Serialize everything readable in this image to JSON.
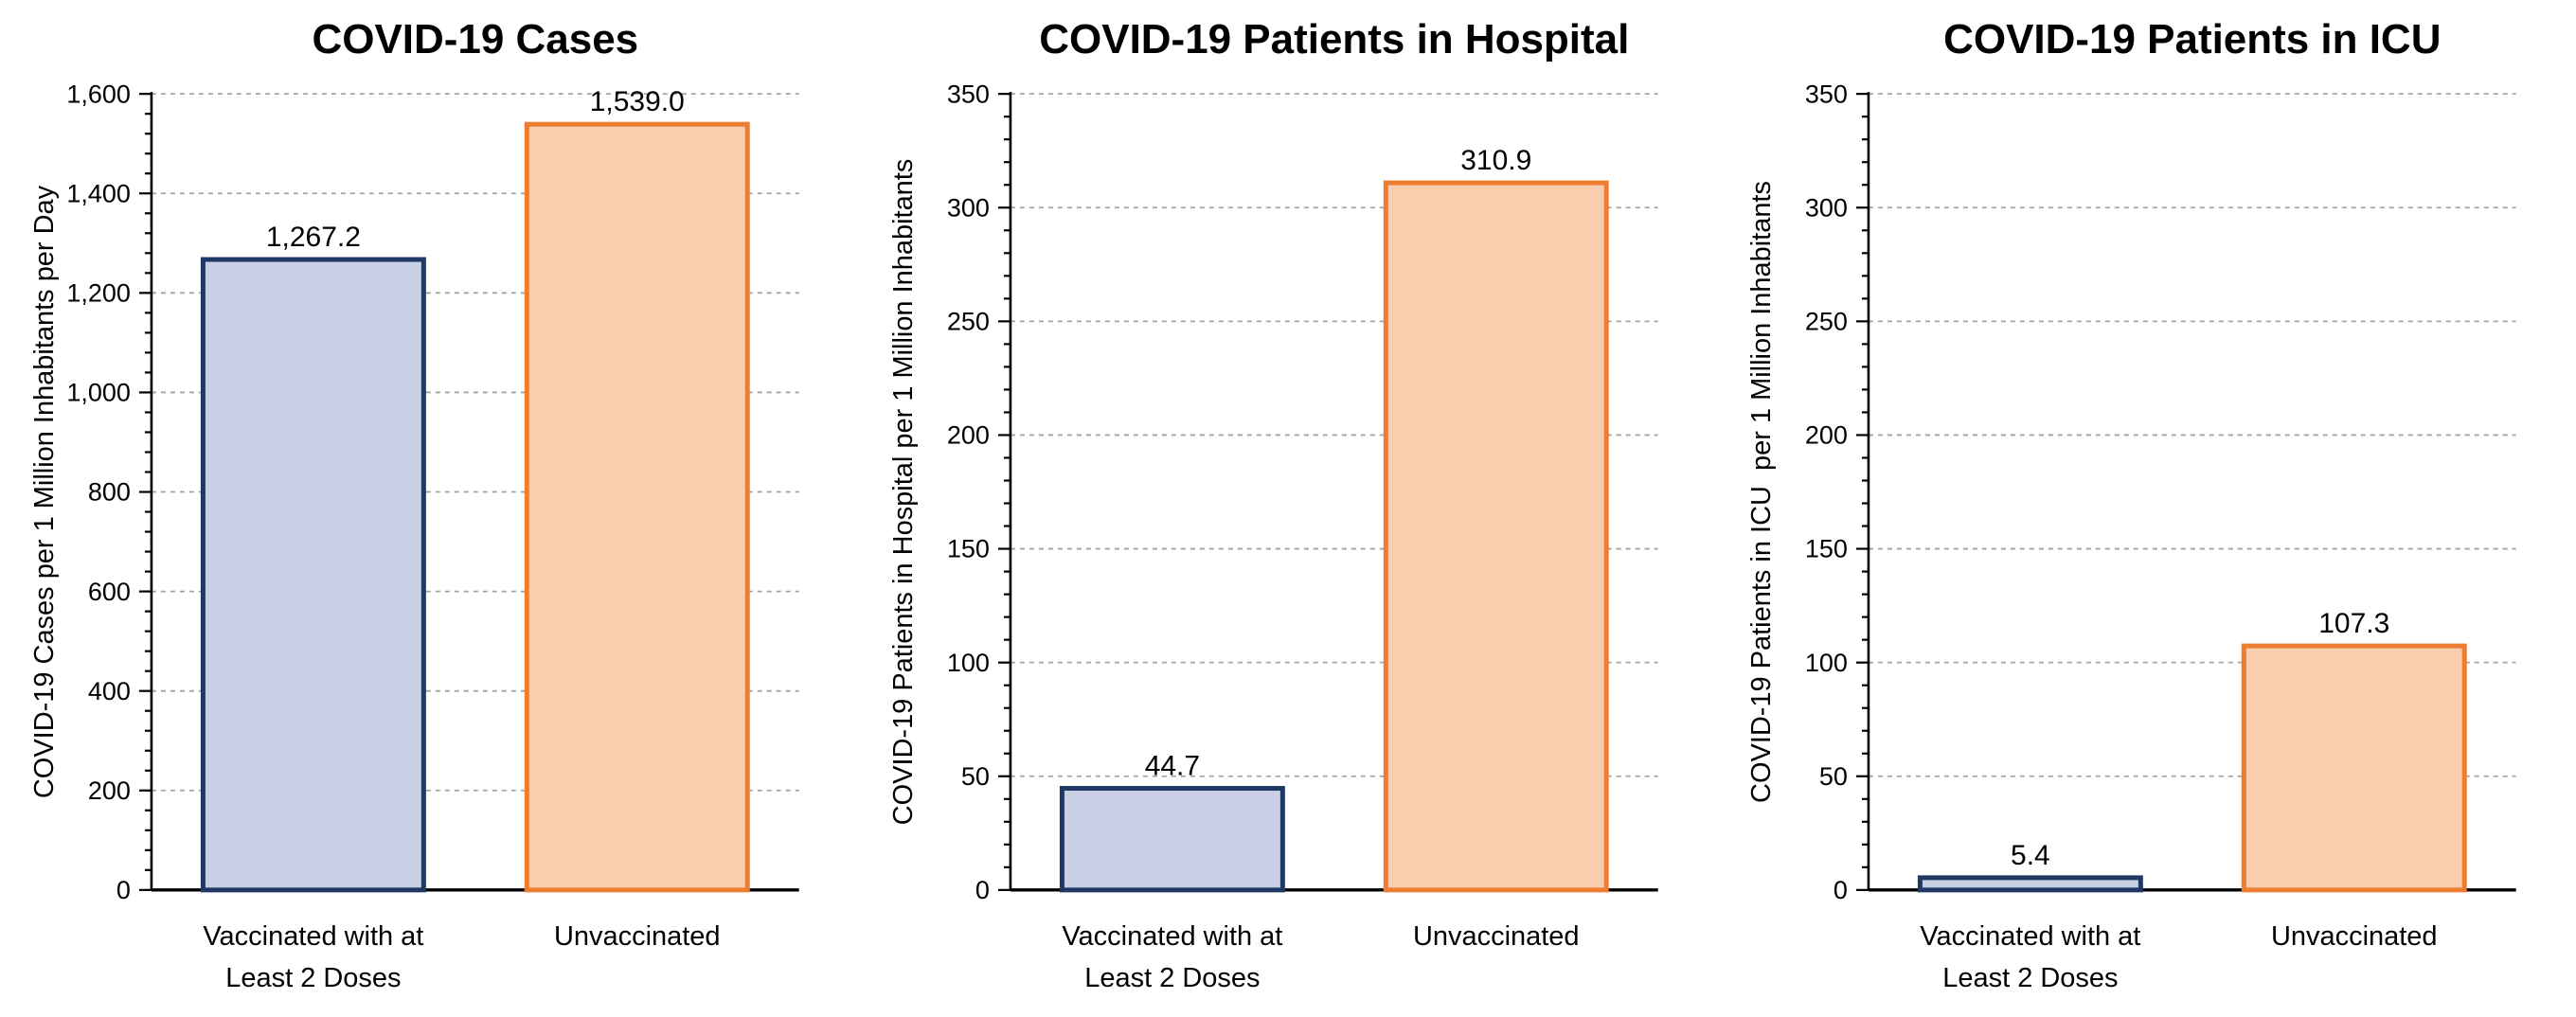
{
  "styles": {
    "background": "#FFFFFF",
    "grid_color": "#A3A3A3",
    "axis_color": "#000000",
    "text_color": "#000000",
    "vaccinated_fill": "#C9D0E6",
    "vaccinated_stroke": "#1F3864",
    "unvaccinated_fill": "#F8CEAE",
    "unvaccinated_stroke": "#ED7D31"
  },
  "chart_data": [
    {
      "type": "bar",
      "title": "COVID-19 Cases",
      "xlabel": "",
      "ylabel": "COVID-19 Cases per 1 Million Inhabitants per Day",
      "categories": [
        "Vaccinated with at\nLeast 2 Doses",
        "Unvaccinated"
      ],
      "values": [
        1267.2,
        1539.0
      ],
      "value_labels": [
        "1,267.2",
        "1,539.0"
      ],
      "ylim": [
        0,
        1600
      ],
      "y_major_step": 200,
      "y_minor_step": 40,
      "y_tick_labels": [
        "0",
        "200",
        "400",
        "600",
        "800",
        "1,000",
        "1,200",
        "1,400",
        "1,600"
      ],
      "grid": "dashed-horizontal-major",
      "legend": "none",
      "series_colors": [
        {
          "name": "vaccinated",
          "fill": "#C9D0E6",
          "stroke": "#1F3864"
        },
        {
          "name": "unvaccinated",
          "fill": "#F8CEAE",
          "stroke": "#ED7D31"
        }
      ]
    },
    {
      "type": "bar",
      "title": "COVID-19 Patients in Hospital",
      "xlabel": "",
      "ylabel": "COVID-19 Patients in Hospital per 1 Million Inhabitants",
      "categories": [
        "Vaccinated with at\nLeast 2 Doses",
        "Unvaccinated"
      ],
      "values": [
        44.7,
        310.9
      ],
      "value_labels": [
        "44.7",
        "310.9"
      ],
      "ylim": [
        0,
        350
      ],
      "y_major_step": 50,
      "y_minor_step": 10,
      "y_tick_labels": [
        "0",
        "50",
        "100",
        "150",
        "200",
        "250",
        "300",
        "350"
      ],
      "grid": "dashed-horizontal-major",
      "legend": "none",
      "series_colors": [
        {
          "name": "vaccinated",
          "fill": "#C9D0E6",
          "stroke": "#1F3864"
        },
        {
          "name": "unvaccinated",
          "fill": "#F8CEAE",
          "stroke": "#ED7D31"
        }
      ]
    },
    {
      "type": "bar",
      "title": "COVID-19 Patients in ICU",
      "xlabel": "",
      "ylabel": "COVID-19 Patients in ICU  per 1 Million Inhabitants",
      "categories": [
        "Vaccinated with at\nLeast 2 Doses",
        "Unvaccinated"
      ],
      "values": [
        5.4,
        107.3
      ],
      "value_labels": [
        "5.4",
        "107.3"
      ],
      "ylim": [
        0,
        350
      ],
      "y_major_step": 50,
      "y_minor_step": 10,
      "y_tick_labels": [
        "0",
        "50",
        "100",
        "150",
        "200",
        "250",
        "300",
        "350"
      ],
      "grid": "dashed-horizontal-major",
      "legend": "none",
      "series_colors": [
        {
          "name": "vaccinated",
          "fill": "#C9D0E6",
          "stroke": "#1F3864"
        },
        {
          "name": "unvaccinated",
          "fill": "#F8CEAE",
          "stroke": "#ED7D31"
        }
      ]
    }
  ]
}
